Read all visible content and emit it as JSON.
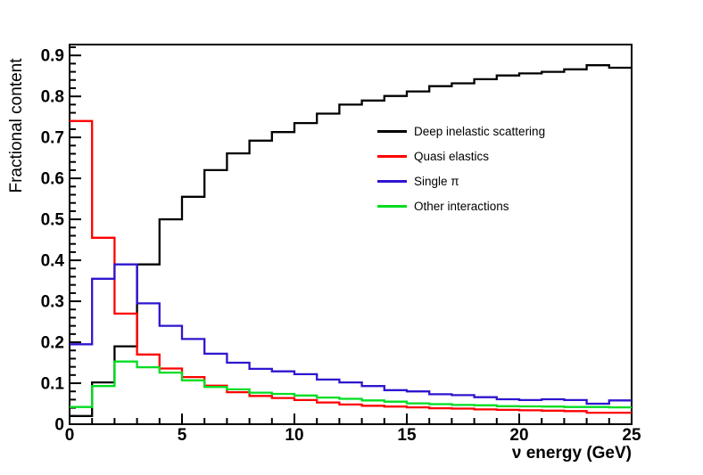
{
  "chart_data": {
    "type": "step-histogram",
    "title": "",
    "xlabel": "ν energy (GeV)",
    "ylabel": "Fractional content",
    "xlim": [
      0,
      25
    ],
    "ylim": [
      0,
      0.9265
    ],
    "grid": false,
    "background": "#ffffff",
    "axis_color": "#000000",
    "bin_width_gev": 1,
    "bin_start": 0,
    "x_tick_values": [
      0,
      5,
      10,
      15,
      20,
      25
    ],
    "x_tick_labels": [
      "0",
      "5",
      "10",
      "15",
      "20",
      "25"
    ],
    "x_minor_tick_step": 1,
    "y_tick_values": [
      0,
      0.1,
      0.2,
      0.3,
      0.4,
      0.5,
      0.6,
      0.7,
      0.8,
      0.9
    ],
    "y_tick_labels": [
      "0",
      "0.1",
      "0.2",
      "0.3",
      "0.4",
      "0.5",
      "0.6",
      "0.7",
      "0.8",
      "0.9"
    ],
    "y_minor_tick_step": 0.02,
    "legend_position": "upper-right-inside",
    "series": [
      {
        "name": "Deep inelastic scattering",
        "color": "#000000",
        "values": [
          0.02,
          0.102,
          0.19,
          0.39,
          0.5,
          0.555,
          0.62,
          0.661,
          0.692,
          0.713,
          0.735,
          0.758,
          0.78,
          0.79,
          0.801,
          0.812,
          0.825,
          0.832,
          0.842,
          0.851,
          0.856,
          0.86,
          0.866,
          0.876,
          0.87
        ]
      },
      {
        "name": "Quasi elastics",
        "color": "#ff0000",
        "values": [
          0.74,
          0.455,
          0.27,
          0.17,
          0.136,
          0.115,
          0.094,
          0.078,
          0.069,
          0.064,
          0.059,
          0.053,
          0.048,
          0.045,
          0.043,
          0.041,
          0.039,
          0.038,
          0.036,
          0.035,
          0.034,
          0.033,
          0.032,
          0.028,
          0.028
        ]
      },
      {
        "name": "Single π",
        "color": "#2e16cf",
        "values": [
          0.195,
          0.355,
          0.39,
          0.295,
          0.24,
          0.208,
          0.172,
          0.15,
          0.135,
          0.129,
          0.122,
          0.109,
          0.102,
          0.093,
          0.083,
          0.08,
          0.073,
          0.071,
          0.066,
          0.061,
          0.059,
          0.061,
          0.059,
          0.05,
          0.058
        ]
      },
      {
        "name": "Other interactions",
        "color": "#00dd22",
        "values": [
          0.042,
          0.093,
          0.153,
          0.139,
          0.126,
          0.107,
          0.091,
          0.085,
          0.077,
          0.074,
          0.07,
          0.065,
          0.062,
          0.058,
          0.055,
          0.051,
          0.049,
          0.047,
          0.046,
          0.044,
          0.0435,
          0.043,
          0.042,
          0.042,
          0.041
        ]
      }
    ]
  }
}
